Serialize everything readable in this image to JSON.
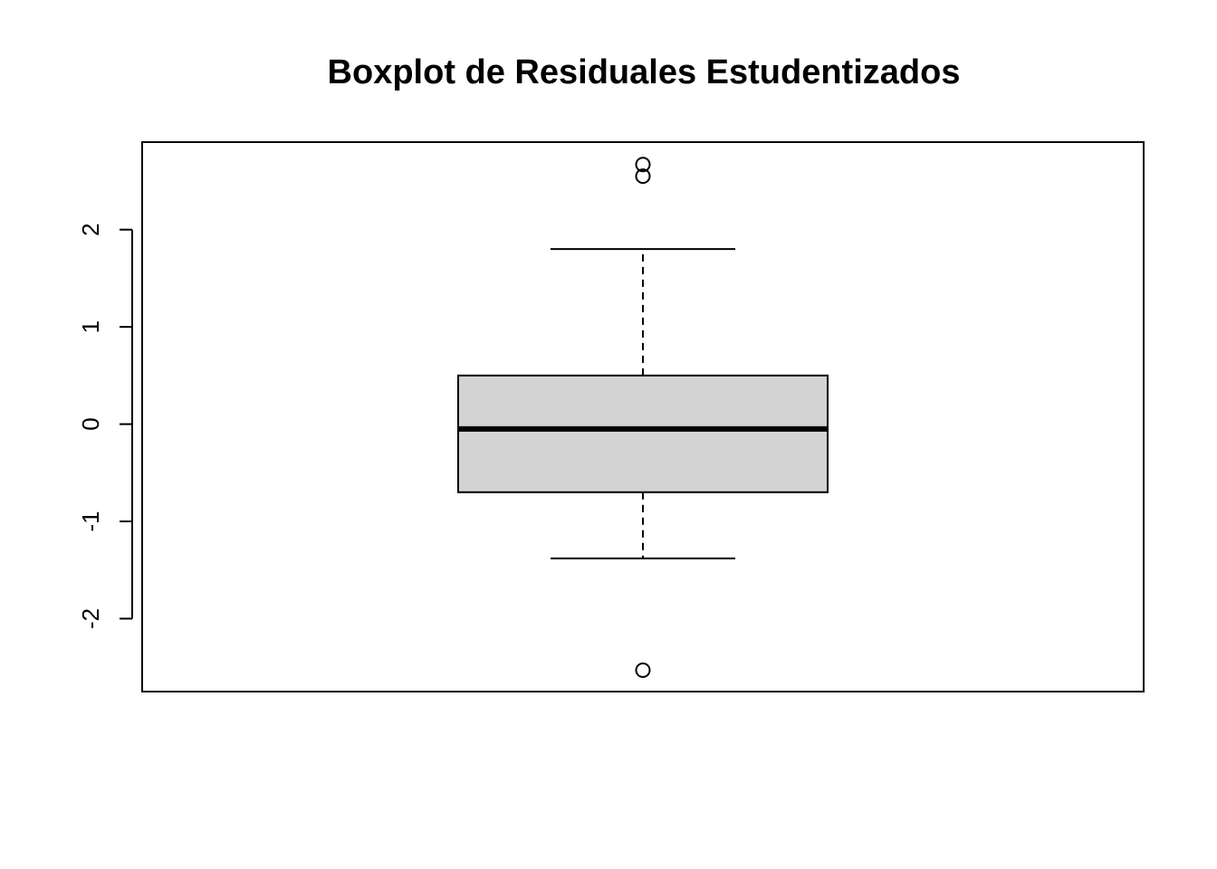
{
  "chart_data": {
    "type": "boxplot",
    "title": "Boxplot de Residuales Estudentizados",
    "xlabel": "",
    "ylabel": "",
    "ylim": [
      -2.75,
      2.9
    ],
    "yticks": [
      -2,
      -1,
      0,
      1,
      2
    ],
    "ytick_labels": [
      "-2",
      "-1",
      "0",
      "1",
      "2"
    ],
    "grid": false,
    "box": {
      "lower_whisker": -1.38,
      "q1": -0.7,
      "median": -0.05,
      "q3": 0.5,
      "upper_whisker": 1.8,
      "outliers": [
        2.67,
        2.55,
        -2.53
      ],
      "fill": "#d3d3d3",
      "line_color": "#000000"
    }
  }
}
